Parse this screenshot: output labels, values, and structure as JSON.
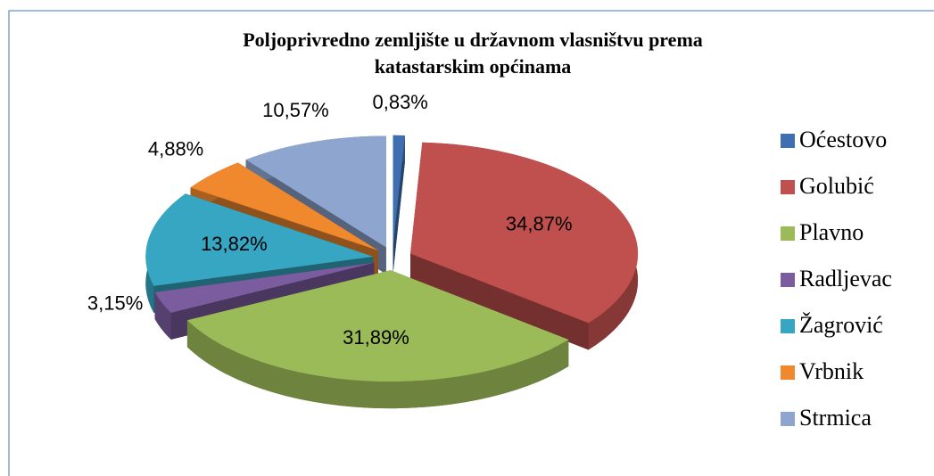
{
  "chart_data": {
    "type": "pie",
    "title": "Poljoprivredno zemljište u državnom vlasništvu prema katastarskim općinama",
    "categories": [
      "Oćestovo",
      "Golubić",
      "Plavno",
      "Radljevac",
      "Žagrović",
      "Vrbnik",
      "Strmica"
    ],
    "values": [
      0.83,
      34.87,
      31.89,
      3.15,
      13.82,
      4.88,
      10.57
    ],
    "value_labels": [
      "0,83%",
      "34,87%",
      "31,89%",
      "3,15%",
      "13,82%",
      "4,88%",
      "10,57%"
    ],
    "colors": [
      "#3f6fb0",
      "#c0504d",
      "#9bbb59",
      "#7b5c9e",
      "#36a6c2",
      "#f0882e",
      "#8ea6cf"
    ],
    "legend": "right"
  }
}
